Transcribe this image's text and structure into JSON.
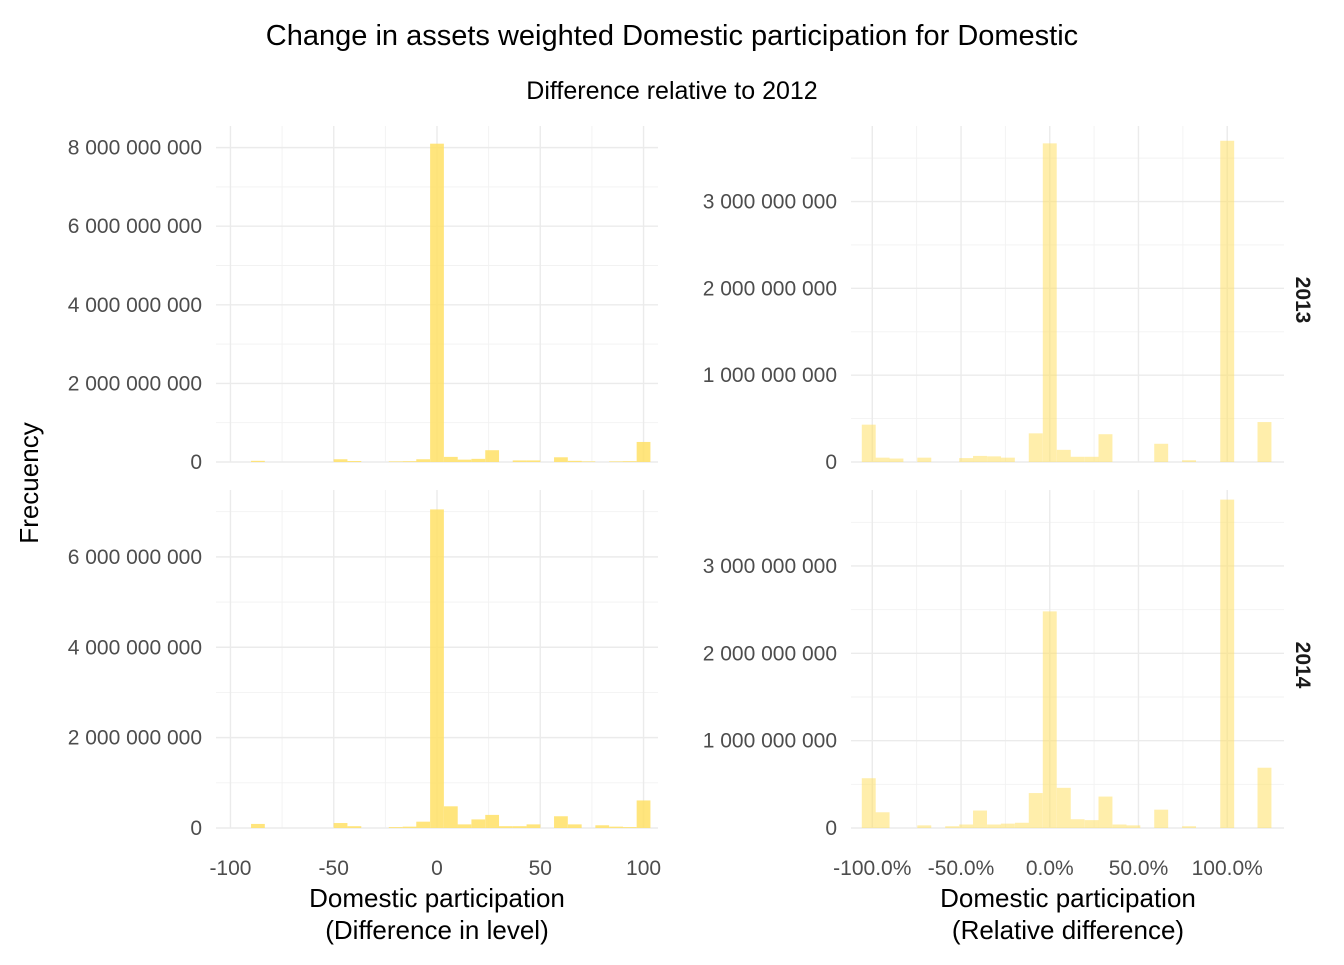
{
  "chart_data": {
    "type": "bar",
    "title": "Change in assets weighted Domestic participation for Domestic",
    "subtitle": "Difference relative to 2012",
    "ylabel": "Frecuency",
    "fill_color": "#FFE066",
    "left_column": {
      "xlabel_line1": "Domestic participation",
      "xlabel_line2": "(Difference in level)",
      "xlim": [
        -107,
        107
      ],
      "x_ticks": [
        -100,
        -50,
        0,
        50,
        100
      ],
      "x_tick_labels": [
        "-100",
        "-50",
        "0",
        "50",
        "100"
      ],
      "bin_width": 6.667,
      "opacity": 0.85
    },
    "right_column": {
      "xlabel_line1": "Domestic participation",
      "xlabel_line2": "(Relative difference)",
      "xlim": [
        -1.12,
        1.32
      ],
      "x_ticks": [
        -1.0,
        -0.5,
        0.0,
        0.5,
        1.0
      ],
      "x_tick_labels": [
        "-100.0%",
        "-50.0%",
        "0.0%",
        "50.0%",
        "100.0%"
      ],
      "bin_width": 0.0785,
      "opacity": 0.55
    },
    "panels": [
      {
        "facet": "2013",
        "column": "left",
        "ylim": [
          0,
          8550000000
        ],
        "y_ticks": [
          0,
          2000000000,
          4000000000,
          6000000000,
          8000000000
        ],
        "y_tick_labels": [
          "0",
          "2 000 000 000",
          "4 000 000 000",
          "6 000 000 000",
          "8 000 000 000"
        ],
        "bins": [
          {
            "x": -86.7,
            "y": 30000000
          },
          {
            "x": -46.7,
            "y": 70000000
          },
          {
            "x": -40.0,
            "y": 25000000
          },
          {
            "x": -20.0,
            "y": 15000000
          },
          {
            "x": -13.3,
            "y": 20000000
          },
          {
            "x": -6.7,
            "y": 70000000
          },
          {
            "x": 0.0,
            "y": 8100000000
          },
          {
            "x": 6.7,
            "y": 130000000
          },
          {
            "x": 13.3,
            "y": 60000000
          },
          {
            "x": 20.0,
            "y": 80000000
          },
          {
            "x": 26.7,
            "y": 300000000
          },
          {
            "x": 40.0,
            "y": 40000000
          },
          {
            "x": 46.7,
            "y": 40000000
          },
          {
            "x": 60.0,
            "y": 120000000
          },
          {
            "x": 66.7,
            "y": 30000000
          },
          {
            "x": 73.3,
            "y": 15000000
          },
          {
            "x": 86.7,
            "y": 15000000
          },
          {
            "x": 93.3,
            "y": 20000000
          },
          {
            "x": 100.0,
            "y": 510000000
          }
        ]
      },
      {
        "facet": "2013",
        "column": "right",
        "ylim": [
          0,
          3870000000
        ],
        "y_ticks": [
          0,
          1000000000,
          2000000000,
          3000000000
        ],
        "y_tick_labels": [
          "0",
          "1 000 000 000",
          "2 000 000 000",
          "3 000 000 000"
        ],
        "bins": [
          {
            "x": -1.02,
            "y": 430000000
          },
          {
            "x": -0.942,
            "y": 50000000
          },
          {
            "x": -0.864,
            "y": 40000000
          },
          {
            "x": -0.707,
            "y": 50000000
          },
          {
            "x": -0.471,
            "y": 45000000
          },
          {
            "x": -0.393,
            "y": 70000000
          },
          {
            "x": -0.314,
            "y": 65000000
          },
          {
            "x": -0.236,
            "y": 50000000
          },
          {
            "x": -0.079,
            "y": 330000000
          },
          {
            "x": 0.0,
            "y": 3670000000
          },
          {
            "x": 0.079,
            "y": 140000000
          },
          {
            "x": 0.157,
            "y": 60000000
          },
          {
            "x": 0.236,
            "y": 60000000
          },
          {
            "x": 0.314,
            "y": 320000000
          },
          {
            "x": 0.628,
            "y": 210000000
          },
          {
            "x": 0.785,
            "y": 20000000
          },
          {
            "x": 1.0,
            "y": 3700000000
          },
          {
            "x": 1.21,
            "y": 460000000
          }
        ]
      },
      {
        "facet": "2014",
        "column": "left",
        "ylim": [
          0,
          7480000000
        ],
        "y_ticks": [
          0,
          2000000000,
          4000000000,
          6000000000
        ],
        "y_tick_labels": [
          "0",
          "2 000 000 000",
          "4 000 000 000",
          "6 000 000 000"
        ],
        "bins": [
          {
            "x": -86.7,
            "y": 90000000
          },
          {
            "x": -46.7,
            "y": 110000000
          },
          {
            "x": -40.0,
            "y": 40000000
          },
          {
            "x": -20.0,
            "y": 20000000
          },
          {
            "x": -13.3,
            "y": 30000000
          },
          {
            "x": -6.7,
            "y": 140000000
          },
          {
            "x": 0.0,
            "y": 7050000000
          },
          {
            "x": 6.7,
            "y": 480000000
          },
          {
            "x": 13.3,
            "y": 80000000
          },
          {
            "x": 20.0,
            "y": 190000000
          },
          {
            "x": 26.7,
            "y": 290000000
          },
          {
            "x": 33.3,
            "y": 40000000
          },
          {
            "x": 40.0,
            "y": 40000000
          },
          {
            "x": 46.7,
            "y": 80000000
          },
          {
            "x": 60.0,
            "y": 260000000
          },
          {
            "x": 66.7,
            "y": 80000000
          },
          {
            "x": 80.0,
            "y": 60000000
          },
          {
            "x": 86.7,
            "y": 30000000
          },
          {
            "x": 93.3,
            "y": 20000000
          },
          {
            "x": 100.0,
            "y": 610000000
          }
        ]
      },
      {
        "facet": "2014",
        "column": "right",
        "ylim": [
          0,
          3870000000
        ],
        "y_ticks": [
          0,
          1000000000,
          2000000000,
          3000000000
        ],
        "y_tick_labels": [
          "0",
          "1 000 000 000",
          "2 000 000 000",
          "3 000 000 000"
        ],
        "bins": [
          {
            "x": -1.02,
            "y": 570000000
          },
          {
            "x": -0.942,
            "y": 180000000
          },
          {
            "x": -0.707,
            "y": 30000000
          },
          {
            "x": -0.55,
            "y": 20000000
          },
          {
            "x": -0.471,
            "y": 40000000
          },
          {
            "x": -0.393,
            "y": 200000000
          },
          {
            "x": -0.314,
            "y": 40000000
          },
          {
            "x": -0.236,
            "y": 50000000
          },
          {
            "x": -0.157,
            "y": 60000000
          },
          {
            "x": -0.079,
            "y": 400000000
          },
          {
            "x": 0.0,
            "y": 2480000000
          },
          {
            "x": 0.079,
            "y": 460000000
          },
          {
            "x": 0.157,
            "y": 100000000
          },
          {
            "x": 0.236,
            "y": 90000000
          },
          {
            "x": 0.314,
            "y": 360000000
          },
          {
            "x": 0.393,
            "y": 40000000
          },
          {
            "x": 0.471,
            "y": 30000000
          },
          {
            "x": 0.628,
            "y": 210000000
          },
          {
            "x": 0.785,
            "y": 20000000
          },
          {
            "x": 1.0,
            "y": 3760000000
          },
          {
            "x": 1.21,
            "y": 690000000
          }
        ]
      }
    ]
  }
}
